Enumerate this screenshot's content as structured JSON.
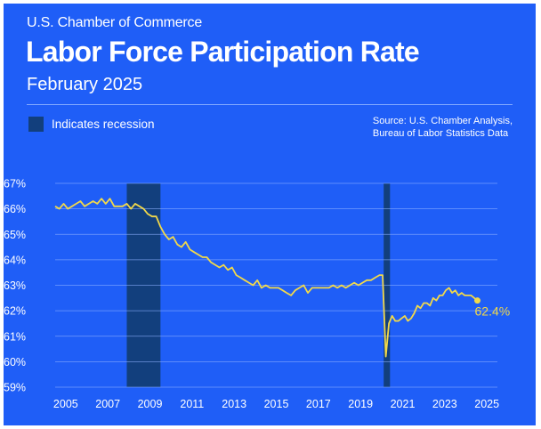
{
  "header": {
    "org": "U.S. Chamber of Commerce",
    "title": "Labor Force Participation Rate",
    "subtitle": "February 2025"
  },
  "legend": {
    "label": "Indicates recession"
  },
  "source": {
    "line1": "Source: U.S. Chamber Analysis,",
    "line2": "Bureau of Labor Statistics Data"
  },
  "colors": {
    "background": "#1f5ef7",
    "recession": "#123f7d",
    "line": "#f2d94a",
    "grid": "#8fb1ff",
    "text": "#ffffff"
  },
  "chart_data": {
    "type": "line",
    "title": "Labor Force Participation Rate",
    "xlabel": "",
    "ylabel": "",
    "xlim": [
      2004.5,
      2025.5
    ],
    "ylim": [
      59,
      67
    ],
    "y_ticks": [
      "59%",
      "60%",
      "61%",
      "62%",
      "63%",
      "64%",
      "65%",
      "66%",
      "67%"
    ],
    "x_ticks": [
      "2005",
      "2007",
      "2009",
      "2011",
      "2013",
      "2015",
      "2017",
      "2019",
      "2021",
      "2023",
      "2025"
    ],
    "grid": true,
    "recessions": [
      [
        2007.9,
        2009.5
      ],
      [
        2020.1,
        2020.4
      ]
    ],
    "end_label": "62.4%",
    "series": [
      {
        "name": "Labor Force Participation Rate",
        "x": [
          2004.5,
          2004.7,
          2004.9,
          2005.1,
          2005.3,
          2005.5,
          2005.7,
          2005.9,
          2006.1,
          2006.3,
          2006.5,
          2006.7,
          2006.9,
          2007.1,
          2007.3,
          2007.5,
          2007.7,
          2007.9,
          2008.1,
          2008.3,
          2008.5,
          2008.7,
          2008.9,
          2009.1,
          2009.3,
          2009.5,
          2009.7,
          2009.9,
          2010.1,
          2010.3,
          2010.5,
          2010.7,
          2010.9,
          2011.1,
          2011.3,
          2011.5,
          2011.7,
          2011.9,
          2012.1,
          2012.3,
          2012.5,
          2012.7,
          2012.9,
          2013.1,
          2013.3,
          2013.5,
          2013.7,
          2013.9,
          2014.1,
          2014.3,
          2014.5,
          2014.7,
          2014.9,
          2015.1,
          2015.3,
          2015.5,
          2015.7,
          2015.9,
          2016.1,
          2016.3,
          2016.5,
          2016.7,
          2016.9,
          2017.1,
          2017.3,
          2017.5,
          2017.7,
          2017.9,
          2018.1,
          2018.3,
          2018.5,
          2018.7,
          2018.9,
          2019.1,
          2019.3,
          2019.5,
          2019.7,
          2019.9,
          2020.05,
          2020.2,
          2020.35,
          2020.5,
          2020.65,
          2020.8,
          2020.95,
          2021.1,
          2021.25,
          2021.4,
          2021.55,
          2021.7,
          2021.85,
          2022.0,
          2022.15,
          2022.3,
          2022.45,
          2022.6,
          2022.75,
          2022.9,
          2023.05,
          2023.2,
          2023.35,
          2023.5,
          2023.65,
          2023.8,
          2023.95,
          2024.1,
          2024.25,
          2024.4,
          2024.55
        ],
        "values": [
          66.1,
          66.0,
          66.2,
          66.0,
          66.1,
          66.2,
          66.3,
          66.1,
          66.2,
          66.3,
          66.2,
          66.4,
          66.2,
          66.4,
          66.1,
          66.1,
          66.1,
          66.2,
          66.0,
          66.2,
          66.1,
          66.0,
          65.8,
          65.7,
          65.7,
          65.3,
          65.0,
          64.8,
          64.9,
          64.6,
          64.5,
          64.7,
          64.4,
          64.3,
          64.2,
          64.1,
          64.1,
          63.9,
          63.8,
          63.7,
          63.8,
          63.6,
          63.7,
          63.4,
          63.3,
          63.2,
          63.1,
          63.0,
          63.2,
          62.9,
          63.0,
          62.9,
          62.9,
          62.9,
          62.8,
          62.7,
          62.6,
          62.8,
          62.9,
          63.0,
          62.7,
          62.9,
          62.9,
          62.9,
          62.9,
          62.9,
          63.0,
          62.9,
          63.0,
          62.9,
          63.0,
          63.1,
          63.0,
          63.1,
          63.2,
          63.2,
          63.3,
          63.4,
          63.4,
          60.2,
          61.5,
          61.8,
          61.6,
          61.6,
          61.7,
          61.8,
          61.6,
          61.7,
          61.9,
          62.2,
          62.1,
          62.3,
          62.3,
          62.2,
          62.5,
          62.4,
          62.6,
          62.6,
          62.8,
          62.9,
          62.7,
          62.8,
          62.6,
          62.7,
          62.6,
          62.6,
          62.6,
          62.5,
          62.4
        ]
      }
    ]
  }
}
